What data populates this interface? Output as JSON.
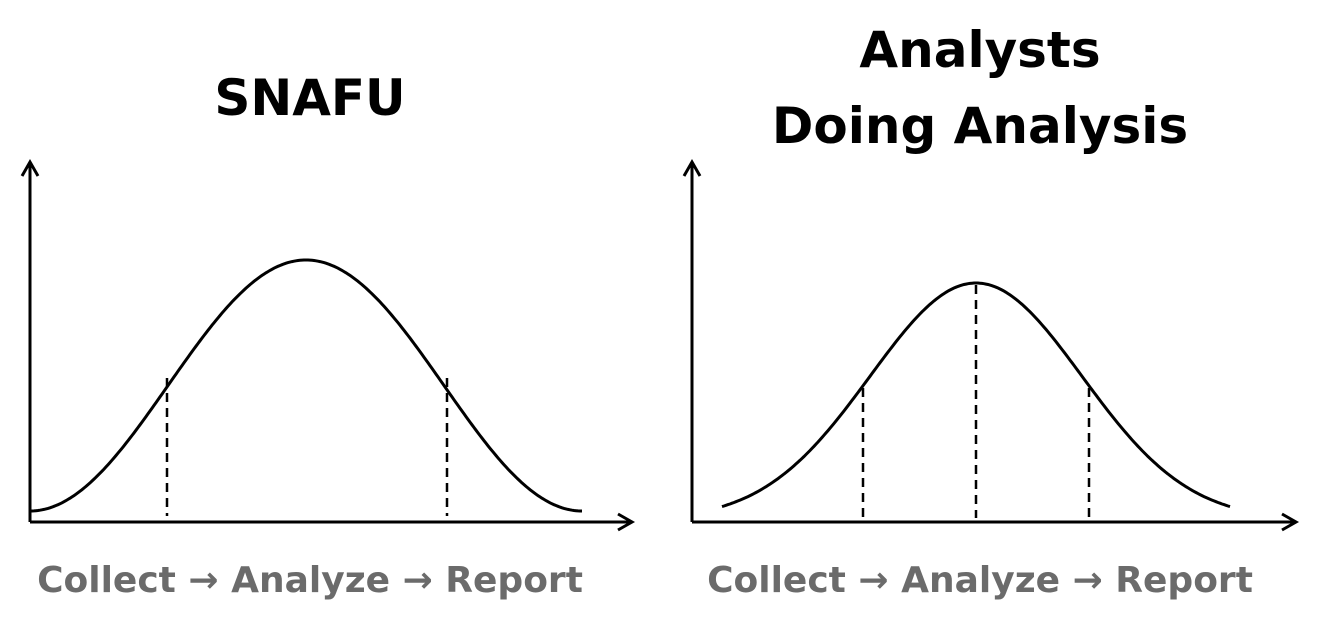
{
  "left": {
    "title": "SNAFU",
    "axis_label": "Collect → Analyze → Report"
  },
  "right": {
    "title_lines": [
      "Analysts",
      "Doing Analysis"
    ],
    "axis_label": "Collect → Analyze → Report"
  }
}
